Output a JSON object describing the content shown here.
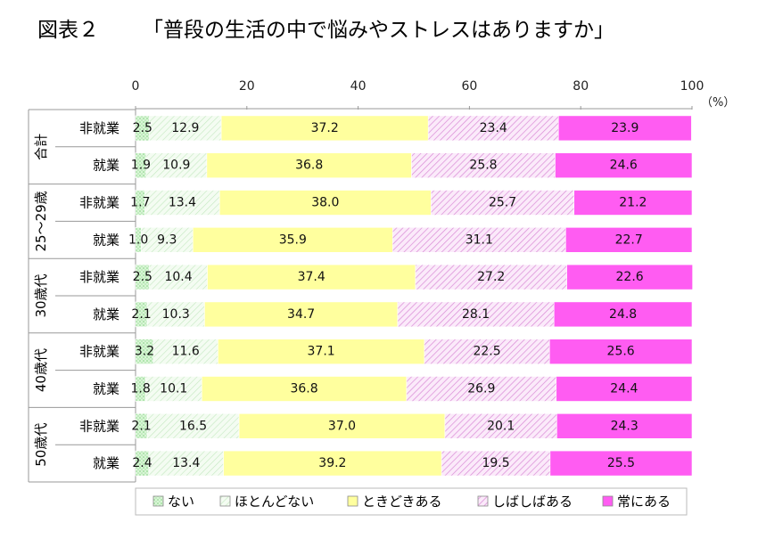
{
  "figure_label": "図表２",
  "chart_data": {
    "type": "bar",
    "orientation": "horizontal",
    "stacked": true,
    "title": "「普段の生活の中で悩みやストレスはありますか」",
    "unit": "（%）",
    "xlim": [
      0,
      100
    ],
    "xticks": [
      "0",
      "20",
      "40",
      "60",
      "80",
      "100"
    ],
    "legend_position": "bottom",
    "groups": [
      {
        "label": "合計",
        "rows": [
          {
            "label": "非就業",
            "values": [
              2.5,
              12.9,
              37.2,
              23.4,
              23.9
            ]
          },
          {
            "label": "就業",
            "values": [
              1.9,
              10.9,
              36.8,
              25.8,
              24.6
            ]
          }
        ]
      },
      {
        "label": "25〜29歳",
        "rows": [
          {
            "label": "非就業",
            "values": [
              1.7,
              13.4,
              38.0,
              25.7,
              21.2
            ]
          },
          {
            "label": "就業",
            "values": [
              1.0,
              9.3,
              35.9,
              31.1,
              22.7
            ]
          }
        ]
      },
      {
        "label": "30歳代",
        "rows": [
          {
            "label": "非就業",
            "values": [
              2.5,
              10.4,
              37.4,
              27.2,
              22.6
            ]
          },
          {
            "label": "就業",
            "values": [
              2.1,
              10.3,
              34.7,
              28.1,
              24.8
            ]
          }
        ]
      },
      {
        "label": "40歳代",
        "rows": [
          {
            "label": "非就業",
            "values": [
              3.2,
              11.6,
              37.1,
              22.5,
              25.6
            ]
          },
          {
            "label": "就業",
            "values": [
              1.8,
              10.1,
              36.8,
              26.9,
              24.4
            ]
          }
        ]
      },
      {
        "label": "50歳代",
        "rows": [
          {
            "label": "非就業",
            "values": [
              2.1,
              16.5,
              37.0,
              20.1,
              24.3
            ]
          },
          {
            "label": "就業",
            "values": [
              2.4,
              13.4,
              39.2,
              19.5,
              25.5
            ]
          }
        ]
      }
    ],
    "series": [
      {
        "name": "ない",
        "color": "#ccf2cc",
        "pattern": "dots-green"
      },
      {
        "name": "ほとんどない",
        "color": "#eefaee",
        "pattern": "hatch-green"
      },
      {
        "name": "ときどきある",
        "color": "#ffff9e",
        "pattern": "none"
      },
      {
        "name": "しばしばある",
        "color": "#f6d6f4",
        "pattern": "hatch-pink"
      },
      {
        "name": "常にある",
        "color": "#ff5cf2",
        "pattern": "none"
      }
    ]
  }
}
